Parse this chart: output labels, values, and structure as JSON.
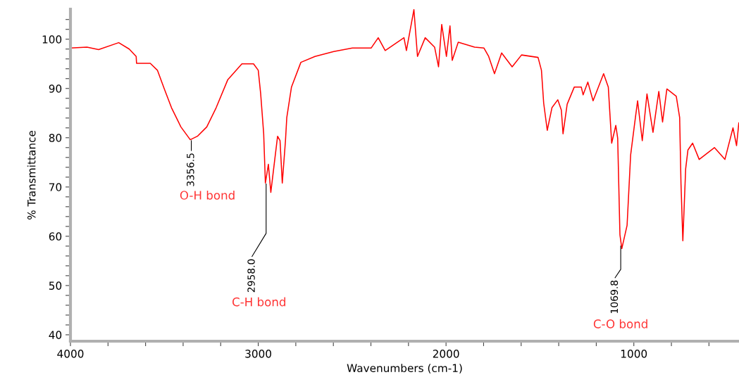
{
  "chart_data": {
    "type": "line",
    "xlabel": "Wavenumbers (cm-1)",
    "ylabel": "% Transmittance",
    "xlim": [
      4000,
      440
    ],
    "ylim": [
      38.7,
      106.1
    ],
    "xticks": [
      4000,
      {
        "value": 3800,
        "label": null
      },
      {
        "value": 3600,
        "label": null
      },
      {
        "value": 3400,
        "label": null
      },
      {
        "value": 3200,
        "label": null
      },
      3000,
      {
        "value": 2800,
        "label": null
      },
      {
        "value": 2600,
        "label": null
      },
      {
        "value": 2400,
        "label": null
      },
      {
        "value": 2200,
        "label": null
      },
      2000,
      {
        "value": 1800,
        "label": null
      },
      {
        "value": 1600,
        "label": null
      },
      {
        "value": 1400,
        "label": null
      },
      {
        "value": 1200,
        "label": null
      },
      1000,
      {
        "value": 800,
        "label": null
      },
      {
        "value": 600,
        "label": null
      }
    ],
    "yticks": [
      40,
      {
        "value": 42,
        "label": null
      },
      {
        "value": 44,
        "label": null
      },
      {
        "value": 46,
        "label": null
      },
      {
        "value": 48,
        "label": null
      },
      50,
      {
        "value": 52,
        "label": null
      },
      {
        "value": 54,
        "label": null
      },
      {
        "value": 56,
        "label": null
      },
      {
        "value": 58,
        "label": null
      },
      60,
      {
        "value": 62,
        "label": null
      },
      {
        "value": 64,
        "label": null
      },
      {
        "value": 66,
        "label": null
      },
      {
        "value": 68,
        "label": null
      },
      70,
      {
        "value": 72,
        "label": null
      },
      {
        "value": 74,
        "label": null
      },
      {
        "value": 76,
        "label": null
      },
      {
        "value": 78,
        "label": null
      },
      80,
      {
        "value": 82,
        "label": null
      },
      {
        "value": 84,
        "label": null
      },
      {
        "value": 86,
        "label": null
      },
      {
        "value": 88,
        "label": null
      },
      90,
      {
        "value": 92,
        "label": null
      },
      {
        "value": 94,
        "label": null
      },
      {
        "value": 96,
        "label": null
      },
      {
        "value": 98,
        "label": null
      },
      100,
      {
        "value": 102,
        "label": null
      },
      {
        "value": 104,
        "label": null
      }
    ],
    "grid": false,
    "legend": false,
    "marker": "none",
    "line_style": "solid",
    "series": [
      {
        "color": "#ff0000",
        "x": [
          4000,
          3912,
          3850,
          3743,
          3687,
          3650,
          3648,
          3575,
          3537,
          3500,
          3462,
          3412,
          3362,
          3324,
          3274,
          3224,
          3162,
          3087,
          3025,
          3000,
          2987,
          2971,
          2962,
          2946,
          2933,
          2912,
          2897,
          2884,
          2872,
          2855,
          2848,
          2823,
          2773,
          2698,
          2598,
          2499,
          2399,
          2361,
          2324,
          2224,
          2211,
          2171,
          2152,
          2111,
          2061,
          2040,
          2023,
          1998,
          1979,
          1967,
          1935,
          1848,
          1798,
          1773,
          1742,
          1704,
          1648,
          1598,
          1510,
          1492,
          1480,
          1461,
          1436,
          1405,
          1386,
          1377,
          1355,
          1317,
          1280,
          1270,
          1245,
          1217,
          1161,
          1136,
          1118,
          1096,
          1086,
          1074,
          1064,
          1036,
          1017,
          998,
          980,
          955,
          930,
          898,
          867,
          847,
          824,
          774,
          756,
          749,
          739,
          724,
          712,
          687,
          652,
          571,
          515,
          472,
          453,
          441
        ],
        "values": [
          98.2,
          98.4,
          97.9,
          99.3,
          98.0,
          96.5,
          95.1,
          95.1,
          93.7,
          89.9,
          86.1,
          82.2,
          79.6,
          80.3,
          82.2,
          86.1,
          91.8,
          95.0,
          95.0,
          93.7,
          88.9,
          80.8,
          70.8,
          74.6,
          68.9,
          75.6,
          80.3,
          79.4,
          70.8,
          79.4,
          84.1,
          90.3,
          95.3,
          96.5,
          97.5,
          98.2,
          98.2,
          100.3,
          97.7,
          100.3,
          97.7,
          106.0,
          96.5,
          100.3,
          98.4,
          94.4,
          103.0,
          96.5,
          102.7,
          95.7,
          99.4,
          98.4,
          98.2,
          96.5,
          93.0,
          97.2,
          94.4,
          96.8,
          96.3,
          93.7,
          87.0,
          81.5,
          86.1,
          87.7,
          85.6,
          80.8,
          86.8,
          90.3,
          90.3,
          88.7,
          91.3,
          87.5,
          93.0,
          90.3,
          78.9,
          82.5,
          79.9,
          60.3,
          57.5,
          62.2,
          76.5,
          82.2,
          87.5,
          79.4,
          88.9,
          81.1,
          89.4,
          83.2,
          89.9,
          88.4,
          84.1,
          70.8,
          59.1,
          73.7,
          77.5,
          78.9,
          75.6,
          78.0,
          75.6,
          82.0,
          78.4,
          83.0
        ]
      }
    ],
    "annotations": [
      {
        "text": "3356.5",
        "x": 3356.5,
        "y": 79.4
      },
      "O-H bond",
      {
        "text": "2958.0",
        "x": 2958.0,
        "y": 70.6
      },
      "C-H bond",
      {
        "text": "1069.8",
        "x": 1069.8,
        "y": 58.0
      },
      "C-O bond"
    ]
  }
}
